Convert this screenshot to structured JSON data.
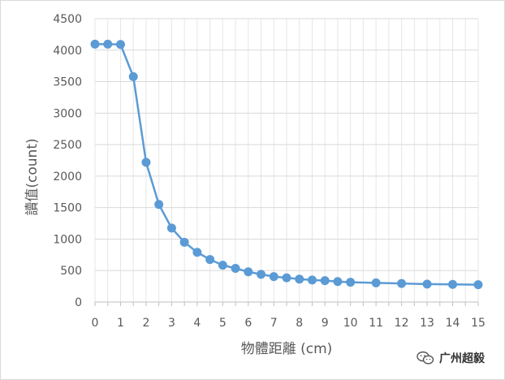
{
  "chart_data": {
    "type": "line",
    "title": "",
    "xlabel": "物體距離 (cm)",
    "ylabel": "讀值(count)",
    "xlim": [
      0,
      15
    ],
    "ylim": [
      0,
      4500
    ],
    "x_ticks": [
      0,
      1,
      2,
      3,
      4,
      5,
      6,
      7,
      8,
      9,
      10,
      11,
      12,
      13,
      14,
      15
    ],
    "y_ticks": [
      0,
      500,
      1000,
      1500,
      2000,
      2500,
      3000,
      3500,
      4000,
      4500
    ],
    "grid": true,
    "legend": "none",
    "series": [
      {
        "color": "#5b9bd5",
        "x": [
          0,
          0.5,
          1,
          1.5,
          2,
          2.5,
          3,
          3.5,
          4,
          4.5,
          5,
          5.5,
          6,
          6.5,
          7,
          7.5,
          8,
          8.5,
          9,
          9.5,
          10,
          11,
          12,
          13,
          14,
          15
        ],
        "y": [
          4095,
          4095,
          4090,
          3580,
          2220,
          1550,
          1175,
          950,
          790,
          675,
          585,
          535,
          480,
          440,
          405,
          385,
          365,
          350,
          340,
          325,
          315,
          305,
          295,
          285,
          280,
          275
        ]
      }
    ]
  },
  "watermark": {
    "text": "广州超毅",
    "icon": "wechat-icon"
  }
}
